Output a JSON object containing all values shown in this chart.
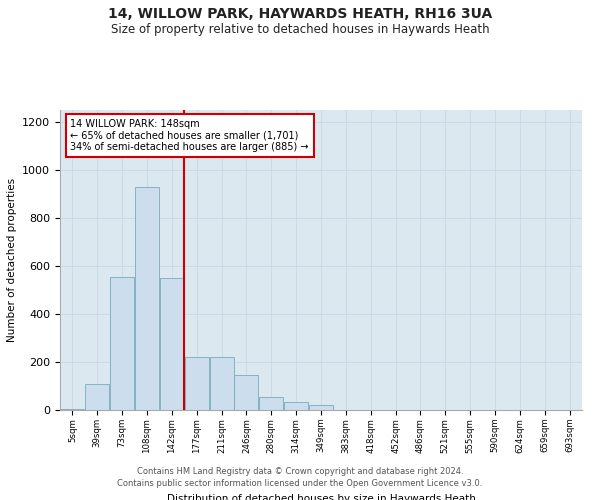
{
  "title": "14, WILLOW PARK, HAYWARDS HEATH, RH16 3UA",
  "subtitle": "Size of property relative to detached houses in Haywards Heath",
  "xlabel": "Distribution of detached houses by size in Haywards Heath",
  "ylabel": "Number of detached properties",
  "categories": [
    "5sqm",
    "39sqm",
    "73sqm",
    "108sqm",
    "142sqm",
    "177sqm",
    "211sqm",
    "246sqm",
    "280sqm",
    "314sqm",
    "349sqm",
    "383sqm",
    "418sqm",
    "452sqm",
    "486sqm",
    "521sqm",
    "555sqm",
    "590sqm",
    "624sqm",
    "659sqm",
    "693sqm"
  ],
  "values": [
    5,
    110,
    555,
    930,
    550,
    220,
    220,
    145,
    55,
    35,
    20,
    0,
    0,
    0,
    0,
    0,
    0,
    0,
    0,
    0,
    0
  ],
  "bar_color": "#ccdded",
  "bar_edge_color": "#7aaabb",
  "annotation_line1": "14 WILLOW PARK: 148sqm",
  "annotation_line2": "← 65% of detached houses are smaller (1,701)",
  "annotation_line3": "34% of semi-detached houses are larger (885) →",
  "vline_color": "#cc0000",
  "annotation_box_edge_color": "#cc0000",
  "footer_line1": "Contains HM Land Registry data © Crown copyright and database right 2024.",
  "footer_line2": "Contains public sector information licensed under the Open Government Licence v3.0.",
  "ylim": [
    0,
    1250
  ],
  "title_fontsize": 10,
  "subtitle_fontsize": 8.5,
  "bar_width": 0.97,
  "background_color": "#ffffff",
  "grid_color": "#c8d8e8",
  "ax_bg_color": "#dce8f0",
  "vline_x_index": 4.5
}
